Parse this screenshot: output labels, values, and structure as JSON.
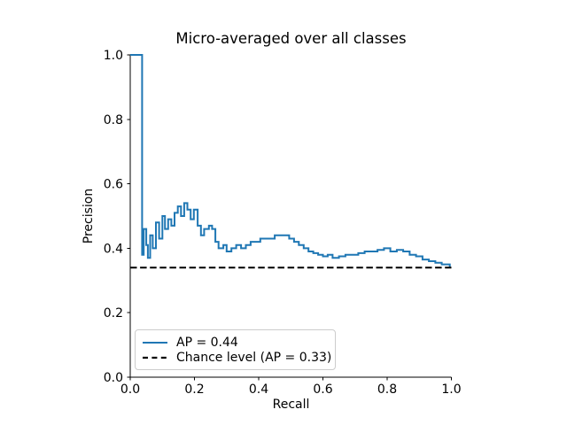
{
  "figure": {
    "title": "Micro-averaged over all classes",
    "xlabel": "Recall",
    "ylabel": "Precision",
    "background_color": "#ffffff",
    "spine_color": "#000000",
    "xticks": [
      "0.0",
      "0.2",
      "0.4",
      "0.6",
      "0.8",
      "1.0"
    ],
    "yticks": [
      "0.0",
      "0.2",
      "0.4",
      "0.6",
      "0.8",
      "1.0"
    ]
  },
  "legend": {
    "items": [
      {
        "label": "AP = 0.44",
        "style": "solid",
        "color": "#1f77b4"
      },
      {
        "label": "Chance level (AP = 0.33)",
        "style": "dashed",
        "color": "#000000"
      }
    ]
  },
  "chart_data": {
    "type": "line",
    "step": "post",
    "title": "Micro-averaged over all classes",
    "xlabel": "Recall",
    "ylabel": "Precision",
    "xlim": [
      0.0,
      1.0
    ],
    "ylim": [
      0.0,
      1.0
    ],
    "grid": false,
    "legend_position": "lower left",
    "average_precision": 0.44,
    "chance_level_ap": 0.33,
    "series": [
      {
        "name": "AP = 0.44",
        "color": "#1f77b4",
        "style": "solid",
        "x": [
          0.0,
          0.037,
          0.042,
          0.05,
          0.055,
          0.062,
          0.07,
          0.08,
          0.09,
          0.1,
          0.108,
          0.118,
          0.128,
          0.138,
          0.148,
          0.158,
          0.168,
          0.178,
          0.188,
          0.198,
          0.21,
          0.22,
          0.23,
          0.245,
          0.255,
          0.265,
          0.275,
          0.29,
          0.3,
          0.315,
          0.33,
          0.345,
          0.36,
          0.375,
          0.39,
          0.405,
          0.42,
          0.435,
          0.45,
          0.465,
          0.48,
          0.495,
          0.51,
          0.525,
          0.54,
          0.555,
          0.57,
          0.585,
          0.6,
          0.615,
          0.63,
          0.65,
          0.67,
          0.69,
          0.71,
          0.73,
          0.75,
          0.77,
          0.79,
          0.81,
          0.83,
          0.85,
          0.87,
          0.89,
          0.91,
          0.93,
          0.95,
          0.97,
          0.985,
          0.995
        ],
        "y": [
          1.0,
          0.38,
          0.46,
          0.41,
          0.37,
          0.44,
          0.4,
          0.48,
          0.43,
          0.5,
          0.46,
          0.49,
          0.47,
          0.51,
          0.53,
          0.5,
          0.54,
          0.52,
          0.49,
          0.52,
          0.47,
          0.44,
          0.46,
          0.47,
          0.46,
          0.42,
          0.4,
          0.41,
          0.39,
          0.4,
          0.41,
          0.4,
          0.41,
          0.42,
          0.42,
          0.43,
          0.43,
          0.43,
          0.44,
          0.44,
          0.44,
          0.43,
          0.42,
          0.41,
          0.4,
          0.39,
          0.385,
          0.38,
          0.375,
          0.38,
          0.37,
          0.375,
          0.38,
          0.38,
          0.385,
          0.39,
          0.39,
          0.395,
          0.4,
          0.39,
          0.395,
          0.39,
          0.38,
          0.375,
          0.365,
          0.36,
          0.355,
          0.35,
          0.35,
          0.34
        ]
      },
      {
        "name": "Chance level (AP = 0.33)",
        "color": "#000000",
        "style": "dashed",
        "x": [
          0.0,
          1.0
        ],
        "y": [
          0.34,
          0.34
        ]
      }
    ]
  }
}
